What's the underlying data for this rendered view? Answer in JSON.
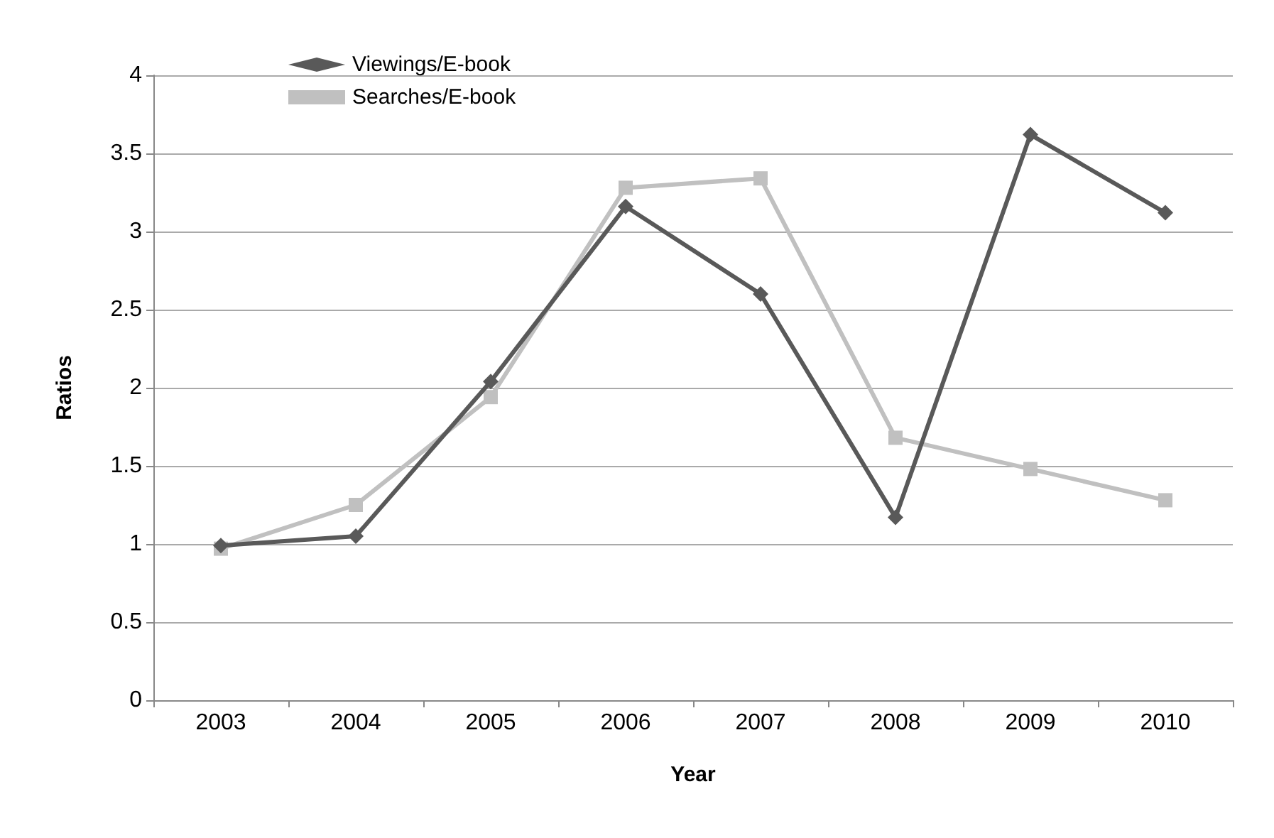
{
  "chart_data": {
    "type": "line",
    "categories": [
      "2003",
      "2004",
      "2005",
      "2006",
      "2007",
      "2008",
      "2009",
      "2010"
    ],
    "series": [
      {
        "name": "Viewings/E-book",
        "color": "#595959",
        "marker": "diamond",
        "values": [
          0.99,
          1.05,
          2.04,
          3.16,
          2.6,
          1.17,
          3.62,
          3.12
        ]
      },
      {
        "name": "Searches/E-book",
        "color": "#c0c0c0",
        "marker": "square",
        "values": [
          0.97,
          1.25,
          1.94,
          3.28,
          3.34,
          1.68,
          1.48,
          1.28
        ]
      }
    ],
    "xlabel": "Year",
    "ylabel": "Ratios",
    "ylim": [
      0,
      4
    ],
    "yticks": [
      0,
      0.5,
      1,
      1.5,
      2,
      2.5,
      3,
      3.5,
      4
    ],
    "grid": "y",
    "legend": "top left",
    "line_style": "solid"
  }
}
